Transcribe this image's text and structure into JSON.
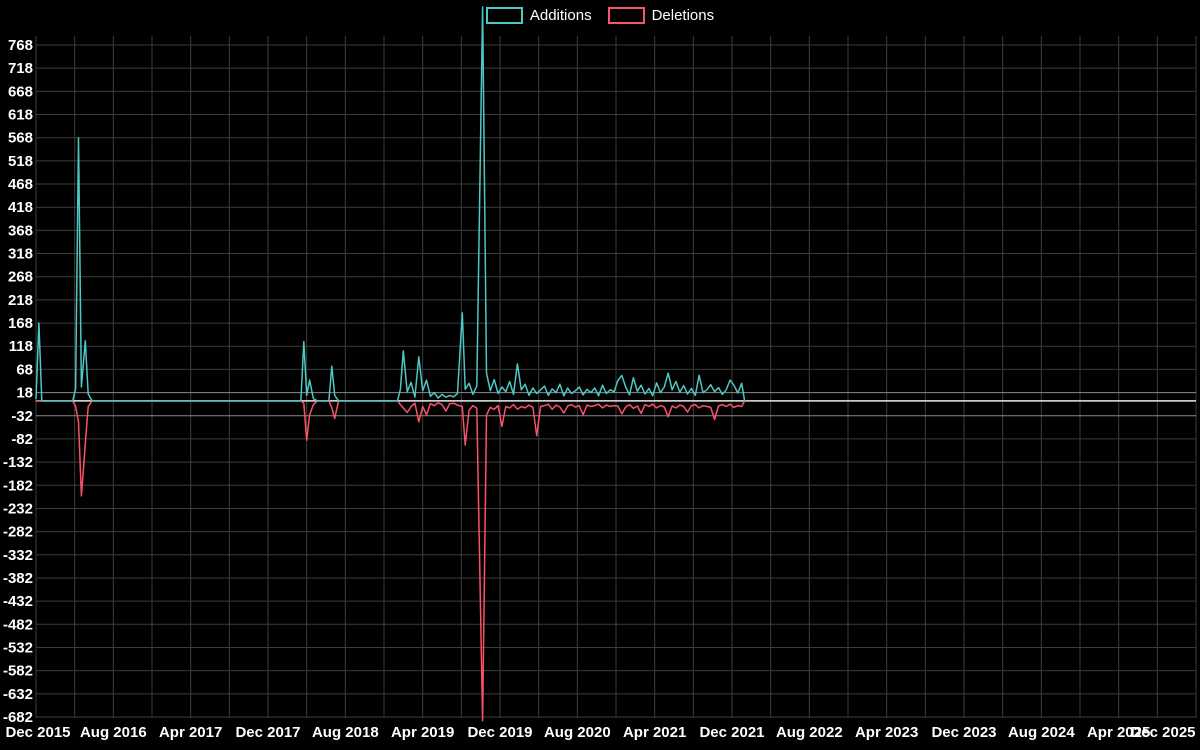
{
  "legend": {
    "items": [
      {
        "label": "Additions"
      },
      {
        "label": "Deletions"
      }
    ]
  },
  "chart_data": {
    "type": "line",
    "title": "",
    "xlabel": "",
    "ylabel": "",
    "x_unit": "months since Dec 2015",
    "xlim": [
      0,
      120
    ],
    "x_tick_interval_months": 8,
    "x_gridline_interval_months": 4,
    "x_tick_labels": [
      "Dec 2015",
      "Aug 2016",
      "Apr 2017",
      "Dec 2017",
      "Aug 2018",
      "Apr 2019",
      "Dec 2019",
      "Aug 2020",
      "Apr 2021",
      "Dec 2021",
      "Aug 2022",
      "Apr 2023",
      "Dec 2023",
      "Aug 2024",
      "Apr 2025",
      "Dec 2025"
    ],
    "y_ticks": [
      768,
      718,
      668,
      618,
      568,
      518,
      468,
      418,
      368,
      318,
      268,
      218,
      168,
      118,
      68,
      18,
      -32,
      -82,
      -132,
      -182,
      -232,
      -282,
      -332,
      -382,
      -432,
      -482,
      -532,
      -582,
      -632,
      -682
    ],
    "grid": true,
    "legend_position": "top-center",
    "colors": {
      "background": "#000000",
      "grid": "#3c3c3c",
      "near_zero_grid": "#8a8a8a",
      "zero_line": "#e8e8e8",
      "text": "#ffffff",
      "additions": "#4dc8c4",
      "deletions": "#fa5268"
    },
    "x_months": [
      0,
      0.3,
      0.6,
      3.8,
      4.1,
      4.4,
      4.7,
      5.1,
      5.4,
      5.8,
      27.4,
      27.7,
      28,
      28.3,
      28.7,
      29.1,
      30.3,
      30.6,
      30.9,
      31.3,
      37.4,
      37.7,
      38,
      38.4,
      38.8,
      39.2,
      39.6,
      40,
      40.4,
      40.8,
      41.2,
      41.6,
      42,
      42.4,
      42.8,
      43.2,
      43.6,
      44.1,
      44.4,
      44.8,
      45.2,
      45.6,
      46.2,
      46.6,
      47,
      47.4,
      47.8,
      48.2,
      48.6,
      49,
      49.4,
      49.8,
      50.2,
      50.6,
      51,
      51.4,
      51.8,
      52.2,
      52.6,
      53,
      53.4,
      53.8,
      54.2,
      54.6,
      55,
      55.4,
      55.8,
      56.2,
      56.6,
      57,
      57.4,
      57.8,
      58.2,
      58.6,
      59,
      59.4,
      59.8,
      60.2,
      60.6,
      61,
      61.4,
      61.8,
      62.2,
      62.6,
      63,
      63.4,
      63.8,
      64.2,
      64.6,
      65,
      65.4,
      65.8,
      66.2,
      66.6,
      67,
      67.4,
      67.8,
      68.2,
      68.6,
      69,
      69.4,
      69.8,
      70.2,
      70.6,
      71,
      71.4,
      71.8,
      72.2,
      72.6,
      73,
      73.3
    ],
    "series": [
      {
        "name": "Additions",
        "color": "#4dc8c4",
        "values": [
          5,
          168,
          0,
          0,
          25,
          568,
          30,
          130,
          15,
          0,
          0,
          128,
          12,
          45,
          5,
          0,
          0,
          75,
          12,
          0,
          0,
          25,
          108,
          20,
          40,
          8,
          95,
          22,
          45,
          10,
          18,
          6,
          14,
          8,
          12,
          9,
          16,
          190,
          25,
          38,
          14,
          32,
          850,
          60,
          22,
          46,
          16,
          30,
          20,
          42,
          14,
          80,
          24,
          36,
          12,
          28,
          16,
          24,
          32,
          12,
          26,
          18,
          36,
          11,
          28,
          16,
          22,
          30,
          13,
          25,
          18,
          28,
          11,
          34,
          16,
          24,
          20,
          44,
          55,
          30,
          13,
          50,
          21,
          34,
          15,
          27,
          11,
          39,
          18,
          30,
          60,
          24,
          42,
          19,
          33,
          15,
          27,
          12,
          55,
          18,
          24,
          35,
          20,
          29,
          14,
          24,
          45,
          34,
          17,
          38,
          0
        ]
      },
      {
        "name": "Deletions",
        "color": "#fa5268",
        "values": [
          0,
          0,
          0,
          0,
          -12,
          -45,
          -205,
          -92,
          -12,
          0,
          0,
          -5,
          -85,
          -30,
          -8,
          0,
          0,
          -15,
          -38,
          0,
          0,
          -8,
          -15,
          -25,
          -12,
          -5,
          -45,
          -12,
          -30,
          -6,
          -10,
          -4,
          -8,
          -22,
          -6,
          -5,
          -9,
          -12,
          -95,
          -20,
          -10,
          -16,
          -690,
          -30,
          -14,
          -18,
          -10,
          -55,
          -12,
          -15,
          -8,
          -18,
          -12,
          -15,
          -9,
          -14,
          -75,
          -12,
          -10,
          -7,
          -18,
          -9,
          -13,
          -26,
          -11,
          -8,
          -13,
          -10,
          -30,
          -9,
          -12,
          -10,
          -7,
          -15,
          -9,
          -12,
          -10,
          -11,
          -28,
          -13,
          -8,
          -16,
          -11,
          -27,
          -8,
          -12,
          -7,
          -15,
          -10,
          -13,
          -34,
          -11,
          -15,
          -9,
          -12,
          -24,
          -10,
          -8,
          -15,
          -10,
          -12,
          -14,
          -40,
          -11,
          -8,
          -12,
          -7,
          -14,
          -10,
          -12,
          0
        ]
      }
    ]
  }
}
